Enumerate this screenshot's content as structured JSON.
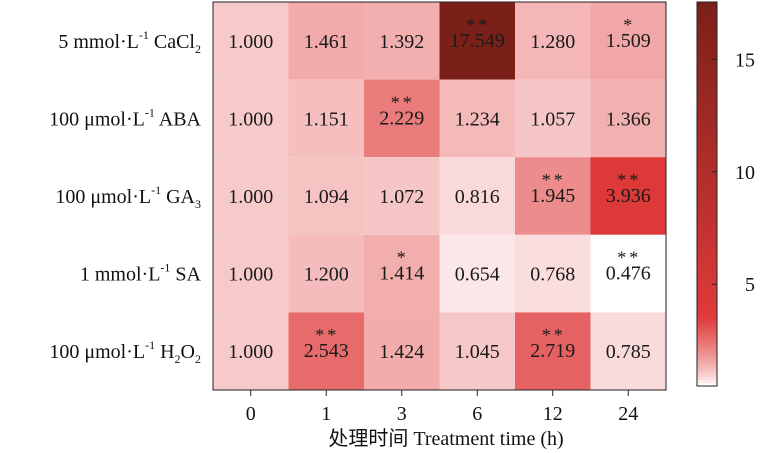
{
  "chart_data": {
    "type": "heatmap",
    "xlabel": "处理时间 Treatment time (h)",
    "x_categories": [
      "0",
      "1",
      "3",
      "6",
      "12",
      "24"
    ],
    "y_categories": [
      {
        "pre": "5 mmol·L",
        "sup": "-1",
        "mid": " CaCl",
        "sub": "2",
        "post": ""
      },
      {
        "pre": "100 μmol·L",
        "sup": "-1",
        "mid": " ABA",
        "sub": "",
        "post": ""
      },
      {
        "pre": "100 μmol·L",
        "sup": "-1",
        "mid": " GA",
        "sub": "3",
        "post": ""
      },
      {
        "pre": "1 mmol·L",
        "sup": "-1",
        "mid": " SA",
        "sub": "",
        "post": ""
      },
      {
        "pre": "100 μmol·L",
        "sup": "-1",
        "mid": " H",
        "sub": "2",
        "post": "O",
        "sub2": "2"
      }
    ],
    "values": [
      [
        1.0,
        1.461,
        1.392,
        17.549,
        1.28,
        1.509
      ],
      [
        1.0,
        1.151,
        2.229,
        1.234,
        1.057,
        1.366
      ],
      [
        1.0,
        1.094,
        1.072,
        0.816,
        1.945,
        3.936
      ],
      [
        1.0,
        1.2,
        1.414,
        0.654,
        0.768,
        0.476
      ],
      [
        1.0,
        2.543,
        1.424,
        1.045,
        2.719,
        0.785
      ]
    ],
    "value_labels": [
      [
        "1.000",
        "1.461",
        "1.392",
        "17.549",
        "1.280",
        "1.509"
      ],
      [
        "1.000",
        "1.151",
        "2.229",
        "1.234",
        "1.057",
        "1.366"
      ],
      [
        "1.000",
        "1.094",
        "1.072",
        "0.816",
        "1.945",
        "3.936"
      ],
      [
        "1.000",
        "1.200",
        "1.414",
        "0.654",
        "0.768",
        "0.476"
      ],
      [
        "1.000",
        "2.543",
        "1.424",
        "1.045",
        "2.719",
        "0.785"
      ]
    ],
    "significance": [
      [
        "",
        "",
        "",
        "**",
        "",
        "*"
      ],
      [
        "",
        "",
        "**",
        "",
        "",
        ""
      ],
      [
        "",
        "",
        "",
        "",
        "**",
        "**"
      ],
      [
        "",
        "",
        "*",
        "",
        "",
        "**"
      ],
      [
        "",
        "**",
        "",
        "",
        "**",
        ""
      ]
    ],
    "colorbar": {
      "ticks": [
        5,
        10,
        15
      ],
      "range": [
        0.476,
        17.549
      ],
      "low_color": "#ffffff",
      "mid_color": "#e03a3a",
      "high_color": "#7a2018"
    }
  }
}
